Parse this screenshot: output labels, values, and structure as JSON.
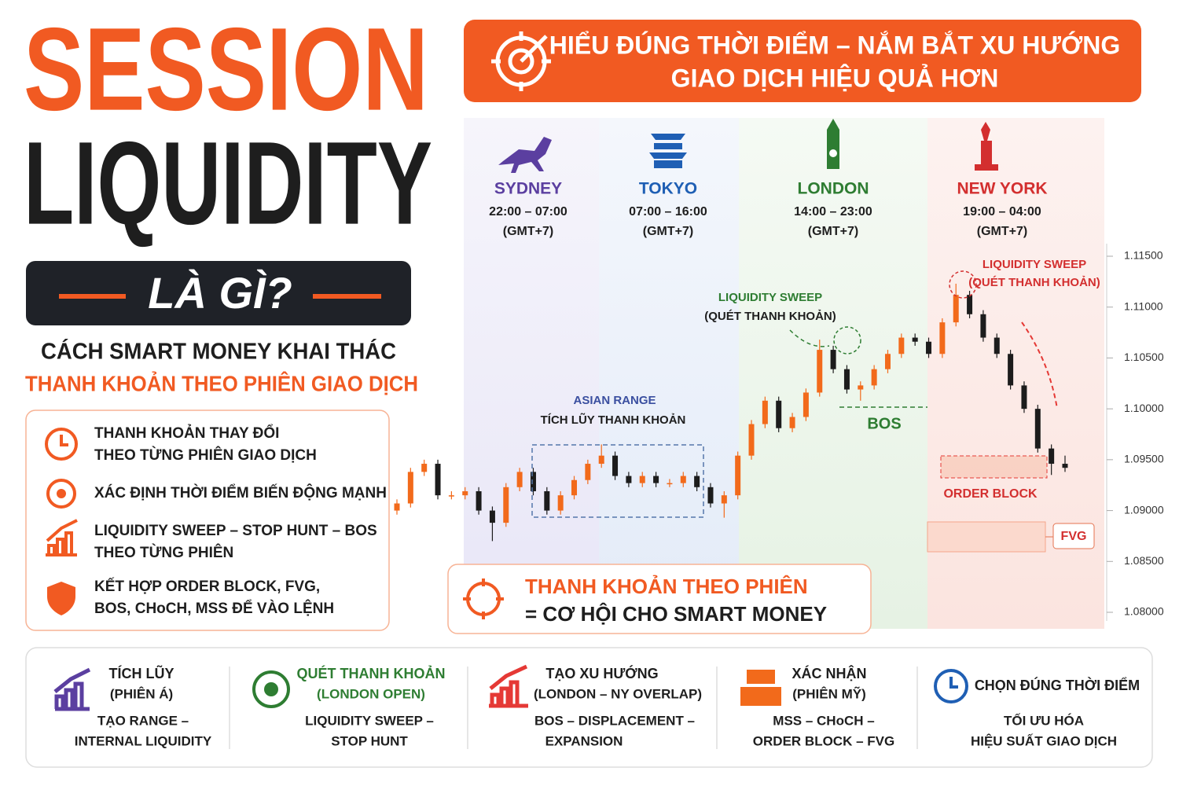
{
  "header": {
    "title_1": "SESSION",
    "title_2": "LIQUIDITY",
    "badge": "LÀ GÌ?",
    "subtitle_1": "CÁCH SMART MONEY KHAI THÁC",
    "subtitle_2": "THANH KHOẢN THEO PHIÊN GIAO DỊCH"
  },
  "banner": {
    "line_1": "HIỂU ĐÚNG THỜI ĐIỂM – NẮM BẮT XU HƯỚNG",
    "line_2": "GIAO DỊCH HIỆU QUẢ HƠN"
  },
  "features": [
    {
      "lines": [
        "THANH KHOẢN THAY ĐỔI",
        "THEO TỪNG PHIÊN GIAO DỊCH"
      ]
    },
    {
      "lines": [
        "XÁC ĐỊNH THỜI ĐIỂM BIẾN ĐỘNG MẠNH"
      ]
    },
    {
      "lines": [
        "LIQUIDITY SWEEP – STOP HUNT – BOS",
        "THEO TỪNG PHIÊN"
      ]
    },
    {
      "lines": [
        "KẾT HỢP ORDER BLOCK, FVG,",
        "BOS, CHoCH,  MSS ĐỂ VÀO LỆNH"
      ]
    }
  ],
  "sessions": [
    {
      "name": "SYDNEY",
      "hours": "22:00 – 07:00",
      "timezone": "(GMT+7)"
    },
    {
      "name": "TOKYO",
      "hours": "07:00 – 16:00",
      "timezone": "(GMT+7)"
    },
    {
      "name": "LONDON",
      "hours": "14:00 – 23:00",
      "timezone": "(GMT+7)"
    },
    {
      "name": "NEW YORK",
      "hours": "19:00 – 04:00",
      "timezone": "(GMT+7)"
    }
  ],
  "chart_data": {
    "type": "candlestick",
    "ylim": [
      1.08,
      1.115
    ],
    "yticks": [
      {
        "value": 1.115,
        "label": "1.11500"
      },
      {
        "value": 1.11,
        "label": "1.11000"
      },
      {
        "value": 1.105,
        "label": "1.10500"
      },
      {
        "value": 1.1,
        "label": "1.10000"
      },
      {
        "value": 1.095,
        "label": "1.09500"
      },
      {
        "value": 1.09,
        "label": "1.09000"
      },
      {
        "value": 1.085,
        "label": "1.08500"
      },
      {
        "value": 1.08,
        "label": "1.08000"
      }
    ],
    "up_color": "#f26a1b",
    "down_color": "#1c1c1c",
    "open": [
      1.09,
      1.0907,
      1.0938,
      1.0946,
      1.0915,
      1.0915,
      1.0919,
      1.09,
      1.0888,
      1.0923,
      1.0938,
      1.0919,
      1.09,
      1.0915,
      1.093,
      1.0946,
      1.0954,
      1.0934,
      1.0927,
      1.0934,
      1.0927,
      1.0927,
      1.0934,
      1.0923,
      1.0907,
      1.0915,
      1.0954,
      1.0985,
      1.1008,
      1.0981,
      1.0992,
      1.1016,
      1.1058,
      1.1039,
      1.1019,
      1.1023,
      1.1039,
      1.1054,
      1.107,
      1.1066,
      1.1054,
      1.1085,
      1.1112,
      1.1093,
      1.107,
      1.1054,
      1.1023,
      1.1,
      1.0961,
      1.0946
    ],
    "high": [
      1.0911,
      1.0942,
      1.095,
      1.095,
      1.0919,
      1.0923,
      1.0923,
      1.0904,
      1.0927,
      1.0942,
      1.0942,
      1.0923,
      1.0919,
      1.0934,
      1.095,
      1.0965,
      1.0958,
      1.0938,
      1.0938,
      1.0938,
      1.0931,
      1.0938,
      1.0938,
      1.0927,
      1.0919,
      1.0958,
      1.0989,
      1.1012,
      1.1012,
      1.0996,
      1.102,
      1.1068,
      1.1062,
      1.1043,
      1.1027,
      1.1043,
      1.1058,
      1.1074,
      1.1074,
      1.107,
      1.1089,
      1.1123,
      1.1116,
      1.1097,
      1.1074,
      1.1058,
      1.1027,
      1.1004,
      1.0965,
      1.0954
    ],
    "low": [
      1.0896,
      1.0903,
      1.0934,
      1.0911,
      1.0911,
      1.0911,
      1.0896,
      1.087,
      1.0884,
      1.0919,
      1.0915,
      1.0896,
      1.0896,
      1.0911,
      1.0926,
      1.0942,
      1.093,
      1.0923,
      1.0923,
      1.0923,
      1.0923,
      1.0923,
      1.0919,
      1.0903,
      1.0893,
      1.0911,
      1.095,
      1.0981,
      1.0977,
      1.0977,
      1.0988,
      1.1012,
      1.1035,
      1.1015,
      1.1008,
      1.1019,
      1.1035,
      1.105,
      1.1062,
      1.105,
      1.105,
      1.1081,
      1.1089,
      1.1066,
      1.105,
      1.1019,
      1.0996,
      1.0957,
      1.0935,
      1.0938
    ],
    "close": [
      1.0907,
      1.0938,
      1.0946,
      1.0915,
      1.0915,
      1.0919,
      1.09,
      1.0888,
      1.0923,
      1.0938,
      1.0919,
      1.09,
      1.0915,
      1.093,
      1.0946,
      1.0954,
      1.0934,
      1.0927,
      1.0934,
      1.0927,
      1.0927,
      1.0934,
      1.0923,
      1.0907,
      1.0915,
      1.0954,
      1.0985,
      1.1008,
      1.0981,
      1.0992,
      1.1016,
      1.1058,
      1.1039,
      1.1019,
      1.1023,
      1.1039,
      1.1054,
      1.107,
      1.1066,
      1.1054,
      1.1085,
      1.1112,
      1.1093,
      1.107,
      1.1054,
      1.1023,
      1.1,
      1.0961,
      1.0946,
      1.0942
    ],
    "annotations": [
      "ASIAN RANGE",
      "TÍCH LŨY THANH KHOẢN",
      "LIQUIDITY SWEEP",
      "(QUÉT THANH KHOẢN)",
      "BOS",
      "LIQUIDITY SWEEP",
      "(QUÉT THANH KHOẢN)",
      "ORDER BLOCK",
      "FVG"
    ]
  },
  "callout": {
    "line_1": "THANH KHOẢN THEO PHIÊN",
    "line_2": "= CƠ HỘI CHO SMART MONEY"
  },
  "steps": [
    {
      "lines": [
        "TÍCH LŨY",
        "(PHIÊN Á)",
        "TẠO RANGE –",
        "INTERNAL LIQUIDITY"
      ]
    },
    {
      "lines": [
        "QUÉT THANH KHOẢN",
        "(LONDON OPEN)",
        "LIQUIDITY SWEEP –",
        "STOP HUNT"
      ]
    },
    {
      "lines": [
        "TẠO XU HƯỚNG",
        "(LONDON – NY OVERLAP)",
        "BOS – DISPLACEMENT –",
        "EXPANSION"
      ]
    },
    {
      "lines": [
        "XÁC NHẬN",
        "(PHIÊN MỸ)",
        "MSS – CHoCH –",
        "ORDER BLOCK – FVG"
      ]
    },
    {
      "lines": [
        "CHỌN ĐÚNG THỜI ĐIỂM",
        "TỐI ƯU HÓA",
        "HIỆU SUẤT GIAO DỊCH"
      ]
    }
  ]
}
